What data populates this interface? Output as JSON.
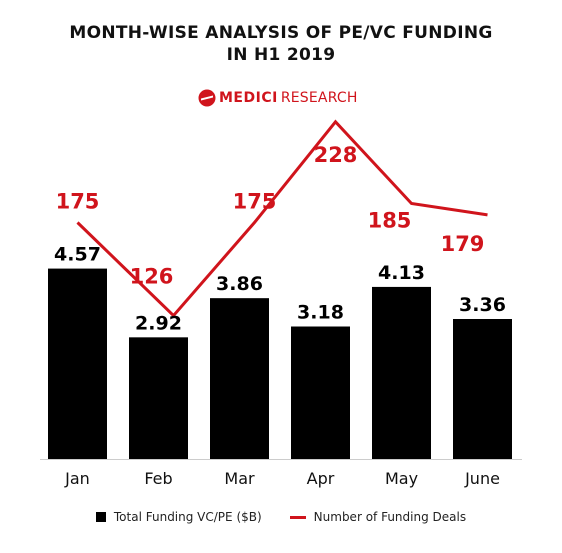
{
  "chart_data": {
    "type": "bar",
    "title_lines": [
      "MONTH-WISE ANALYSIS OF PE/VC FUNDING",
      "IN H1 2019"
    ],
    "brand": {
      "bold": "MEDICI",
      "light": "RESEARCH",
      "color": "#d0141c"
    },
    "categories": [
      "Jan",
      "Feb",
      "Mar",
      "Apr",
      "May",
      "June"
    ],
    "series": [
      {
        "name": "Total Funding VC/PE ($B)",
        "type": "bar",
        "color": "#000000",
        "values": [
          4.57,
          2.92,
          3.86,
          3.18,
          4.13,
          3.36
        ],
        "labels": [
          "4.57",
          "2.92",
          "3.86",
          "3.18",
          "4.13",
          "3.36"
        ]
      },
      {
        "name": "Number of Funding Deals",
        "type": "line",
        "color": "#d0141c",
        "values": [
          175,
          126,
          175,
          228,
          185,
          179
        ],
        "labels": [
          "175",
          "126",
          "175",
          "228",
          "185",
          "179"
        ]
      }
    ],
    "bar_axis_range": [
      0,
      9
    ],
    "line_axis_range": [
      50,
      230
    ],
    "legend_position": "bottom",
    "grid": false
  }
}
